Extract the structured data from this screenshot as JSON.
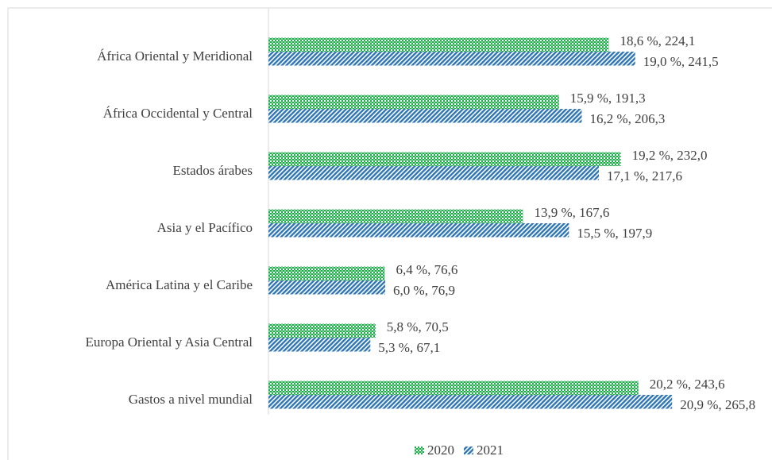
{
  "chart_data": {
    "type": "bar",
    "orientation": "horizontal",
    "categories": [
      "África Oriental y Meridional",
      "África Occidental y Central",
      "Estados árabes",
      "Asia y el Pacífico",
      "América Latina y el Caribe",
      "Europa Oriental y Asia Central",
      "Gastos a nivel mundial"
    ],
    "series": [
      {
        "name": "2020",
        "color": "#1fae4b",
        "values": [
          224.1,
          191.3,
          232.0,
          167.6,
          76.6,
          70.5,
          243.6
        ],
        "value_labels": [
          "18,6 %, 224,1",
          "15,9 %, 191,3",
          "19,2 %, 232,0",
          "13,9 %, 167,6",
          "6,4 %, 76,6",
          "5,8 %, 70,5",
          "20,2 %, 243,6"
        ]
      },
      {
        "name": "2021",
        "color": "#2e75b6",
        "values": [
          241.5,
          206.3,
          217.6,
          197.9,
          76.9,
          67.1,
          265.8
        ],
        "value_labels": [
          "19,0 %, 241,5",
          "16,2 %, 206,3",
          "17,1 %, 217,6",
          "15,5 %, 197,9",
          "6,0 %, 76,9",
          "5,3 %, 67,1",
          "20,9 %, 265,8"
        ]
      }
    ],
    "legend": "bottom"
  }
}
